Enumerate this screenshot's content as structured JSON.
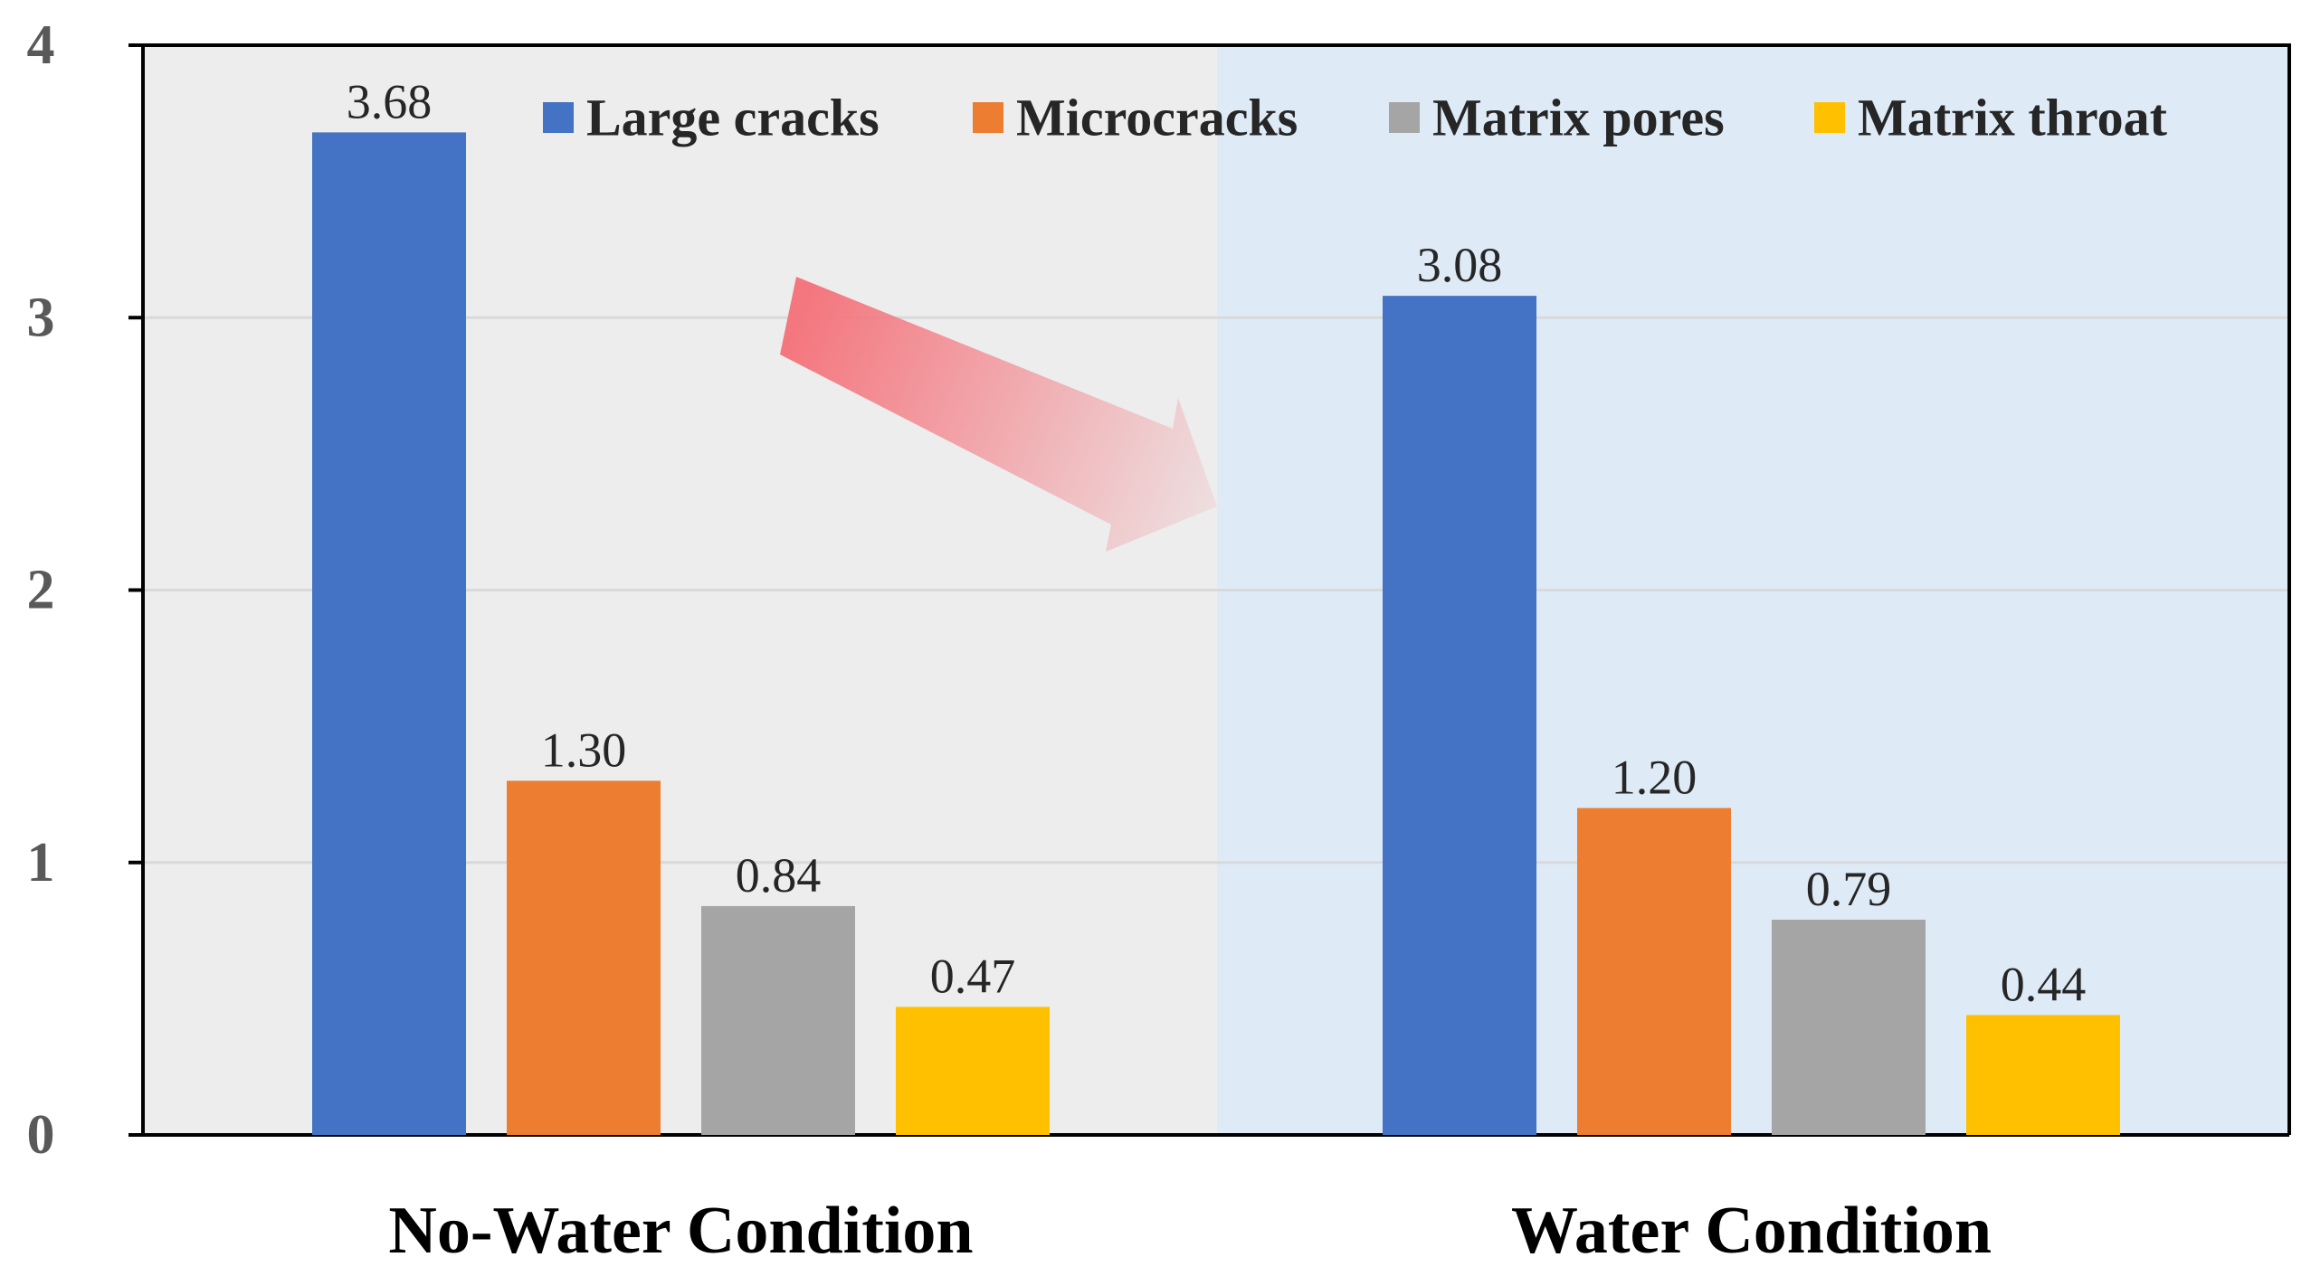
{
  "chart_data": {
    "type": "bar",
    "title": "",
    "xlabel": "",
    "ylabel": "",
    "ylim": [
      0,
      4
    ],
    "yticks": [
      0,
      1,
      2,
      3,
      4
    ],
    "grid": true,
    "legend_position": "top",
    "categories": [
      "No-Water Condition",
      "Water Condition"
    ],
    "series": [
      {
        "name": "Large cracks",
        "color": "#4472C4",
        "values": [
          3.68,
          3.08
        ],
        "labels": [
          "3.68",
          "3.08"
        ]
      },
      {
        "name": "Microcracks",
        "color": "#ED7D31",
        "values": [
          1.3,
          1.2
        ],
        "labels": [
          "1.30",
          "1.20"
        ]
      },
      {
        "name": "Matrix pores",
        "color": "#A5A5A5",
        "values": [
          0.84,
          0.79
        ],
        "labels": [
          "0.84",
          "0.79"
        ]
      },
      {
        "name": "Matrix throat",
        "color": "#FFC000",
        "values": [
          0.47,
          0.44
        ],
        "labels": [
          "0.47",
          "0.44"
        ]
      }
    ],
    "annotations": [
      {
        "type": "arrow",
        "description": "gradient red arrow pointing from No-Water Condition to Water Condition",
        "color": "#F4777F"
      }
    ],
    "panel_colors": {
      "left": "#EDEDED",
      "right": "#DEEAF6"
    },
    "gridline_color": "#D9D9D9",
    "axis_color": "#000000"
  }
}
